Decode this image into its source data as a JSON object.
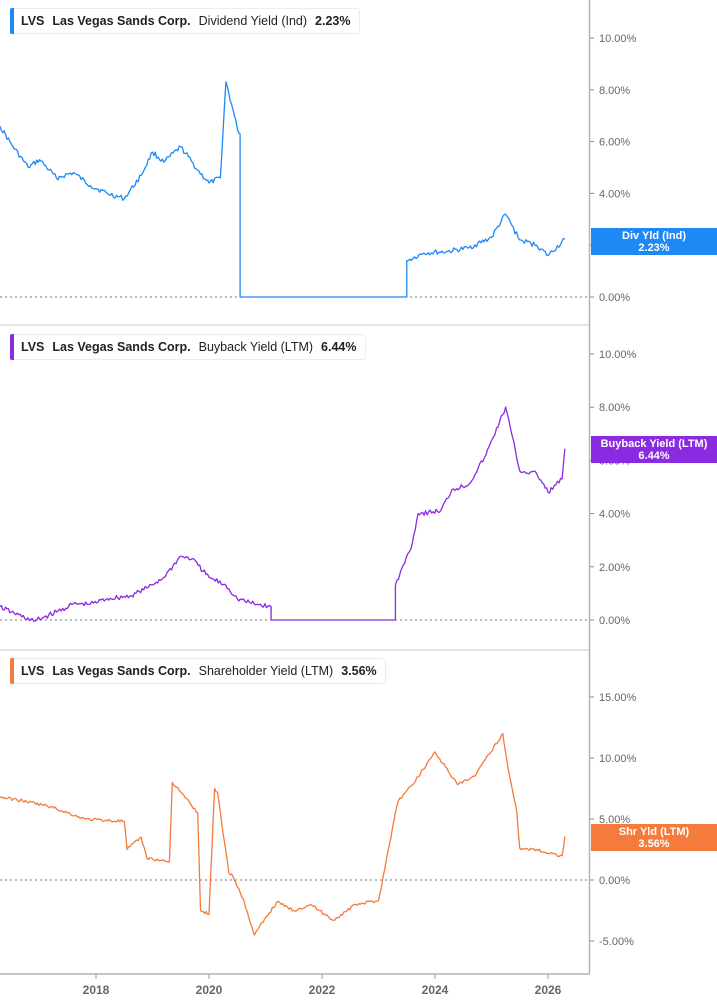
{
  "chart_data": [
    {
      "type": "line",
      "title": "LVS Las Vegas Sands Corp. Dividend Yield (Ind) 2.23%",
      "ticker": "LVS",
      "company": "Las Vegas Sands Corp.",
      "metric": "Dividend Yield (Ind)",
      "current_value": "2.23%",
      "tag_label": "Div Yld (Ind)",
      "color": "#1e88f5",
      "y_ticks": [
        "10.00%",
        "8.00%",
        "6.00%",
        "4.00%",
        "2.00%",
        "0.00%"
      ],
      "ylim": [
        0,
        11
      ],
      "series": [
        {
          "name": "Dividend Yield (Ind)",
          "x": [
            2016.3,
            2016.5,
            2016.8,
            2017.0,
            2017.3,
            2017.6,
            2017.9,
            2018.2,
            2018.5,
            2018.8,
            2019.0,
            2019.2,
            2019.5,
            2019.8,
            2020.0,
            2020.2,
            2020.3,
            2020.45,
            2020.5,
            2020.55,
            2020.55,
            2023.5,
            2023.5,
            2023.8,
            2024.2,
            2024.6,
            2025.0,
            2025.25,
            2025.5,
            2025.8,
            2026.0,
            2026.3
          ],
          "values": [
            6.6,
            5.9,
            5.0,
            5.3,
            4.6,
            4.8,
            4.3,
            4.0,
            3.8,
            4.7,
            5.6,
            5.2,
            5.8,
            4.9,
            4.4,
            4.6,
            8.3,
            7.0,
            6.5,
            6.3,
            0.0,
            0.0,
            1.4,
            1.7,
            1.75,
            1.9,
            2.3,
            3.2,
            2.2,
            2.0,
            1.6,
            2.23
          ]
        }
      ]
    },
    {
      "type": "line",
      "title": "LVS Las Vegas Sands Corp. Buyback Yield (LTM) 6.44%",
      "ticker": "LVS",
      "company": "Las Vegas Sands Corp.",
      "metric": "Buyback Yield (LTM)",
      "current_value": "6.44%",
      "tag_label": "Buyback Yield (LTM)",
      "color": "#8a2be2",
      "y_ticks": [
        "10.00%",
        "8.00%",
        "6.00%",
        "4.00%",
        "2.00%",
        "0.00%"
      ],
      "ylim": [
        0,
        11
      ],
      "series": [
        {
          "name": "Buyback Yield (LTM)",
          "x": [
            2016.3,
            2016.5,
            2016.9,
            2017.3,
            2017.6,
            2017.9,
            2018.2,
            2018.6,
            2018.9,
            2019.2,
            2019.5,
            2019.7,
            2020.0,
            2020.3,
            2020.5,
            2020.8,
            2021.1,
            2021.1,
            2023.3,
            2023.3,
            2023.6,
            2023.7,
            2024.1,
            2024.3,
            2024.6,
            2024.9,
            2025.25,
            2025.5,
            2025.8,
            2026.0,
            2026.25,
            2026.3
          ],
          "values": [
            0.5,
            0.3,
            -0.05,
            0.3,
            0.6,
            0.6,
            0.8,
            0.9,
            1.2,
            1.6,
            2.4,
            2.3,
            1.6,
            1.3,
            0.8,
            0.6,
            0.5,
            0.0,
            0.0,
            1.3,
            2.9,
            4.0,
            4.1,
            4.9,
            5.1,
            6.2,
            8.0,
            5.6,
            5.5,
            4.8,
            5.3,
            6.44
          ]
        }
      ]
    },
    {
      "type": "line",
      "title": "LVS Las Vegas Sands Corp. Shareholder Yield (LTM) 3.56%",
      "ticker": "LVS",
      "company": "Las Vegas Sands Corp.",
      "metric": "Shareholder Yield (LTM)",
      "current_value": "3.56%",
      "tag_label": "Shr Yld (LTM)",
      "color": "#f47b3c",
      "y_ticks": [
        "15.00%",
        "10.00%",
        "5.00%",
        "0.00%",
        "-5.00%"
      ],
      "ylim": [
        -6,
        17
      ],
      "series": [
        {
          "name": "Shareholder Yield (LTM)",
          "x": [
            2016.3,
            2016.7,
            2017.2,
            2017.8,
            2018.5,
            2018.55,
            2018.8,
            2018.9,
            2019.3,
            2019.35,
            2019.5,
            2019.8,
            2019.85,
            2020.0,
            2020.1,
            2020.15,
            2020.35,
            2020.4,
            2020.55,
            2020.6,
            2020.8,
            2021.2,
            2021.5,
            2021.8,
            2022.2,
            2022.6,
            2023.0,
            2023.3,
            2023.35,
            2023.6,
            2024.0,
            2024.4,
            2024.7,
            2025.2,
            2025.3,
            2025.45,
            2025.5,
            2025.8,
            2026.0,
            2026.25,
            2026.3
          ],
          "values": [
            6.8,
            6.5,
            6.0,
            5.0,
            4.8,
            2.5,
            3.5,
            1.8,
            1.5,
            8.0,
            7.2,
            5.5,
            -2.5,
            -2.8,
            7.5,
            7.2,
            0.6,
            0.5,
            -1.0,
            -1.5,
            -4.5,
            -1.8,
            -2.5,
            -2.0,
            -3.3,
            -2.0,
            -1.7,
            5.5,
            6.5,
            7.8,
            10.5,
            7.8,
            8.5,
            12.0,
            9.0,
            5.5,
            2.6,
            2.5,
            2.2,
            2.0,
            3.56
          ]
        }
      ]
    }
  ],
  "x_axis": {
    "ticks": [
      "2018",
      "2020",
      "2022",
      "2024",
      "2026"
    ]
  }
}
